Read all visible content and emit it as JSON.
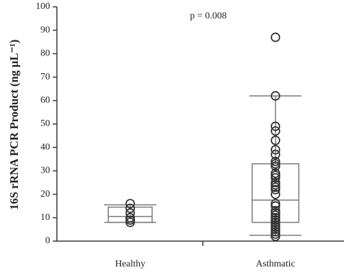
{
  "chart_data": {
    "type": "box",
    "ylabel": "16S rRNA PCR Product (ng µL⁻¹)",
    "annotation": "p = 0.008",
    "categories": [
      "Healthy",
      "Asthmatic"
    ],
    "boxes": [
      {
        "whislo": 8,
        "q1": 8,
        "median": 10.5,
        "q3": 14.5,
        "whishi": 15.5
      },
      {
        "whislo": 2.5,
        "q1": 8,
        "median": 17.5,
        "q3": 33,
        "whishi": 62
      }
    ],
    "points": [
      [
        16,
        14,
        12,
        10,
        9,
        8
      ],
      [
        87,
        62,
        49,
        47,
        43,
        39,
        37,
        34,
        33,
        32,
        29,
        28,
        27,
        25,
        24,
        23,
        22,
        20,
        16,
        15,
        13,
        12,
        11,
        10,
        9,
        8,
        7,
        6,
        5,
        4,
        3,
        2
      ]
    ],
    "box_color": "#777777",
    "point_color": "#333333",
    "ylim": [
      0,
      100
    ],
    "yticks": [
      0,
      10,
      20,
      30,
      40,
      50,
      60,
      70,
      80,
      90,
      100
    ]
  }
}
